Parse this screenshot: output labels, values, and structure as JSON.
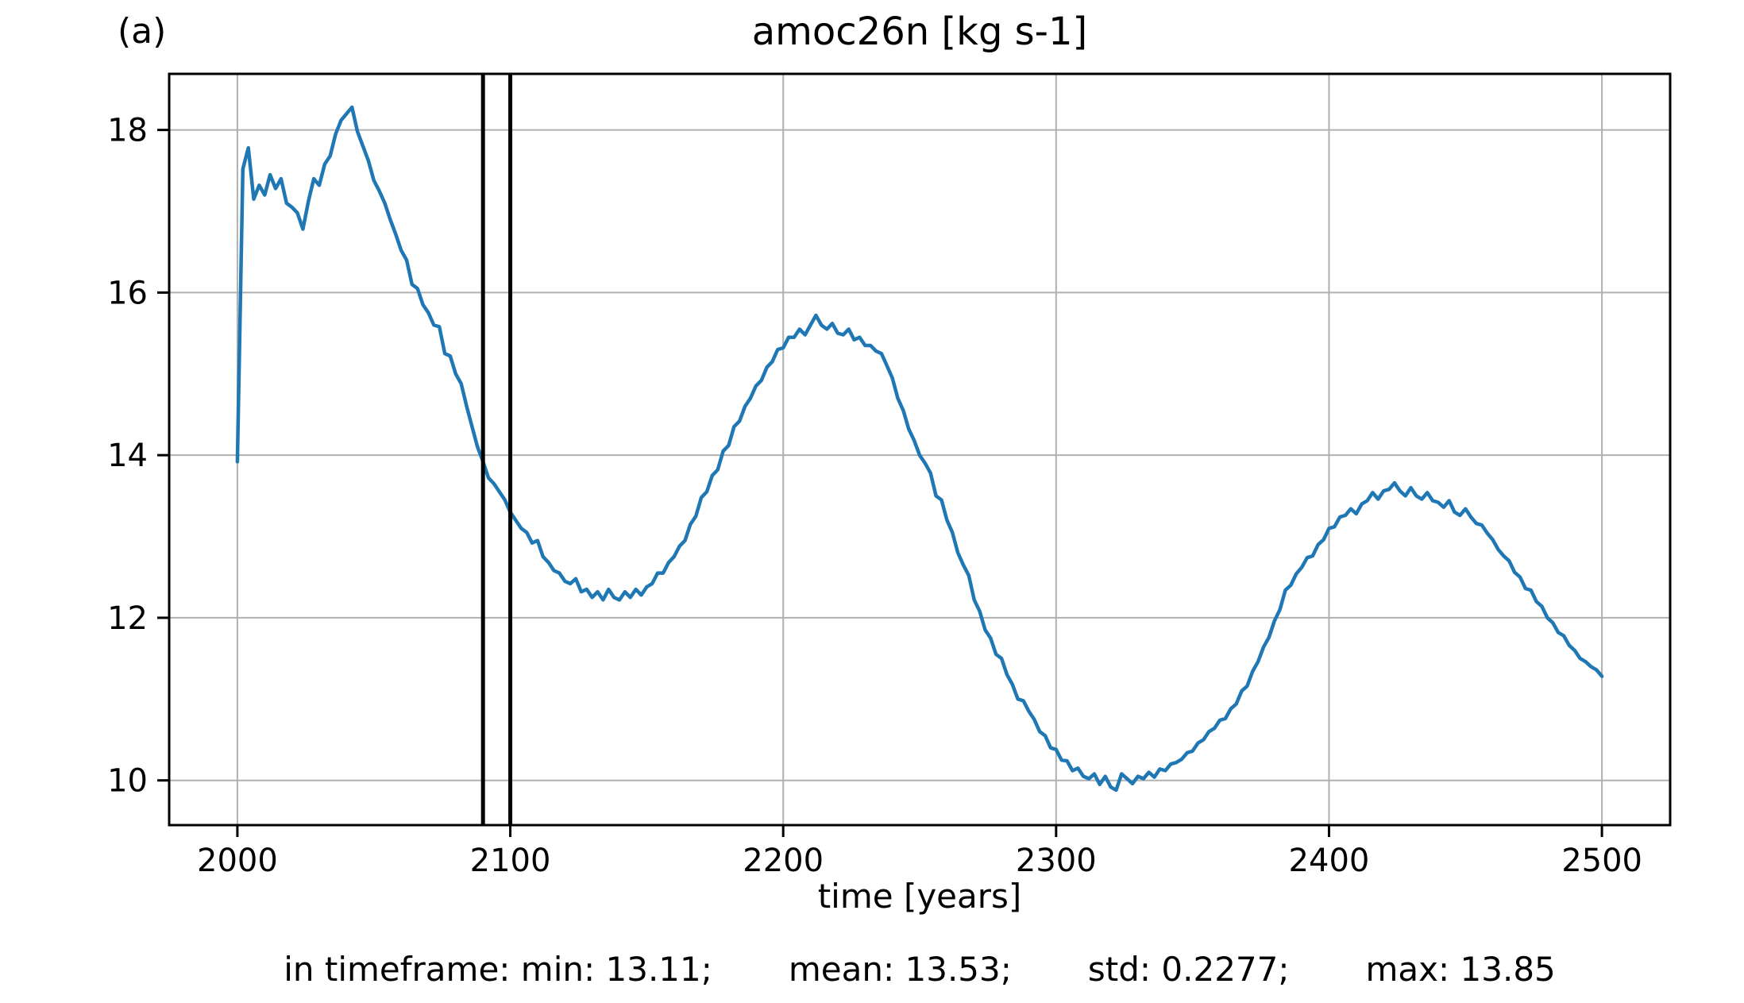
{
  "figure": {
    "panel_label": "(a)",
    "title": "amoc26n [kg s-1]",
    "xlabel": "time [years]",
    "stats": {
      "segment_min": "in timeframe: min: 13.11;",
      "segment_mean": "mean: 13.53;",
      "segment_std": "std: 0.2277;",
      "segment_max": "max: 13.85"
    }
  },
  "chart_data": {
    "type": "line",
    "title": "amoc26n [kg s-1]",
    "xlabel": "time [years]",
    "ylabel": "",
    "xlim": [
      1975,
      2525
    ],
    "ylim": [
      9.45,
      18.69
    ],
    "x_ticks": [
      2000,
      2100,
      2200,
      2300,
      2400,
      2500
    ],
    "y_ticks": [
      10,
      12,
      14,
      16,
      18
    ],
    "grid": true,
    "legend": false,
    "line_color": "#1f77b4",
    "grid_color": "#b0b0b0",
    "vline_color": "#000000",
    "vlines_x": [
      2090,
      2100
    ],
    "stats_in_timeframe": {
      "min": 13.11,
      "mean": 13.53,
      "std": 0.2277,
      "max": 13.85
    },
    "series": [
      {
        "name": "amoc26n",
        "x_start": 2000,
        "x_step": 2,
        "values": [
          13.92,
          17.52,
          17.78,
          17.15,
          17.32,
          17.2,
          17.45,
          17.28,
          17.4,
          17.1,
          17.05,
          16.98,
          16.78,
          17.12,
          17.4,
          17.32,
          17.58,
          17.68,
          17.95,
          18.12,
          18.2,
          18.28,
          17.98,
          17.8,
          17.62,
          17.38,
          17.25,
          17.1,
          16.9,
          16.72,
          16.52,
          16.4,
          16.1,
          16.05,
          15.85,
          15.75,
          15.6,
          15.58,
          15.25,
          15.22,
          15.0,
          14.88,
          14.6,
          14.35,
          14.1,
          13.92,
          13.72,
          13.65,
          13.55,
          13.45,
          13.3,
          13.2,
          13.1,
          13.05,
          12.92,
          12.95,
          12.75,
          12.68,
          12.58,
          12.55,
          12.45,
          12.42,
          12.48,
          12.32,
          12.35,
          12.25,
          12.32,
          12.22,
          12.35,
          12.25,
          12.22,
          12.32,
          12.25,
          12.35,
          12.28,
          12.38,
          12.42,
          12.55,
          12.55,
          12.68,
          12.75,
          12.88,
          12.95,
          13.15,
          13.25,
          13.48,
          13.55,
          13.75,
          13.82,
          14.05,
          14.12,
          14.35,
          14.42,
          14.6,
          14.7,
          14.85,
          14.92,
          15.08,
          15.15,
          15.3,
          15.32,
          15.45,
          15.45,
          15.55,
          15.48,
          15.6,
          15.72,
          15.6,
          15.55,
          15.62,
          15.5,
          15.48,
          15.55,
          15.42,
          15.45,
          15.35,
          15.35,
          15.28,
          15.25,
          15.1,
          14.95,
          14.7,
          14.55,
          14.32,
          14.18,
          14.0,
          13.9,
          13.78,
          13.5,
          13.45,
          13.2,
          13.05,
          12.8,
          12.65,
          12.52,
          12.22,
          12.08,
          11.85,
          11.75,
          11.55,
          11.5,
          11.3,
          11.18,
          11.0,
          10.98,
          10.85,
          10.75,
          10.6,
          10.55,
          10.4,
          10.38,
          10.25,
          10.24,
          10.12,
          10.15,
          10.05,
          10.02,
          10.08,
          9.95,
          10.05,
          9.92,
          9.88,
          10.08,
          10.02,
          9.96,
          10.05,
          10.02,
          10.1,
          10.04,
          10.14,
          10.12,
          10.2,
          10.22,
          10.26,
          10.34,
          10.36,
          10.46,
          10.5,
          10.6,
          10.64,
          10.74,
          10.76,
          10.88,
          10.94,
          11.1,
          11.16,
          11.34,
          11.46,
          11.64,
          11.76,
          11.96,
          12.1,
          12.34,
          12.4,
          12.54,
          12.62,
          12.74,
          12.76,
          12.9,
          12.96,
          13.1,
          13.12,
          13.24,
          13.26,
          13.34,
          13.28,
          13.4,
          13.44,
          13.54,
          13.46,
          13.56,
          13.58,
          13.66,
          13.56,
          13.5,
          13.6,
          13.5,
          13.46,
          13.54,
          13.44,
          13.42,
          13.36,
          13.44,
          13.3,
          13.26,
          13.34,
          13.24,
          13.16,
          13.14,
          13.04,
          12.96,
          12.84,
          12.76,
          12.7,
          12.56,
          12.5,
          12.36,
          12.34,
          12.2,
          12.14,
          12.0,
          11.94,
          11.82,
          11.78,
          11.66,
          11.6,
          11.5,
          11.46,
          11.4,
          11.36,
          11.28
        ]
      }
    ]
  }
}
